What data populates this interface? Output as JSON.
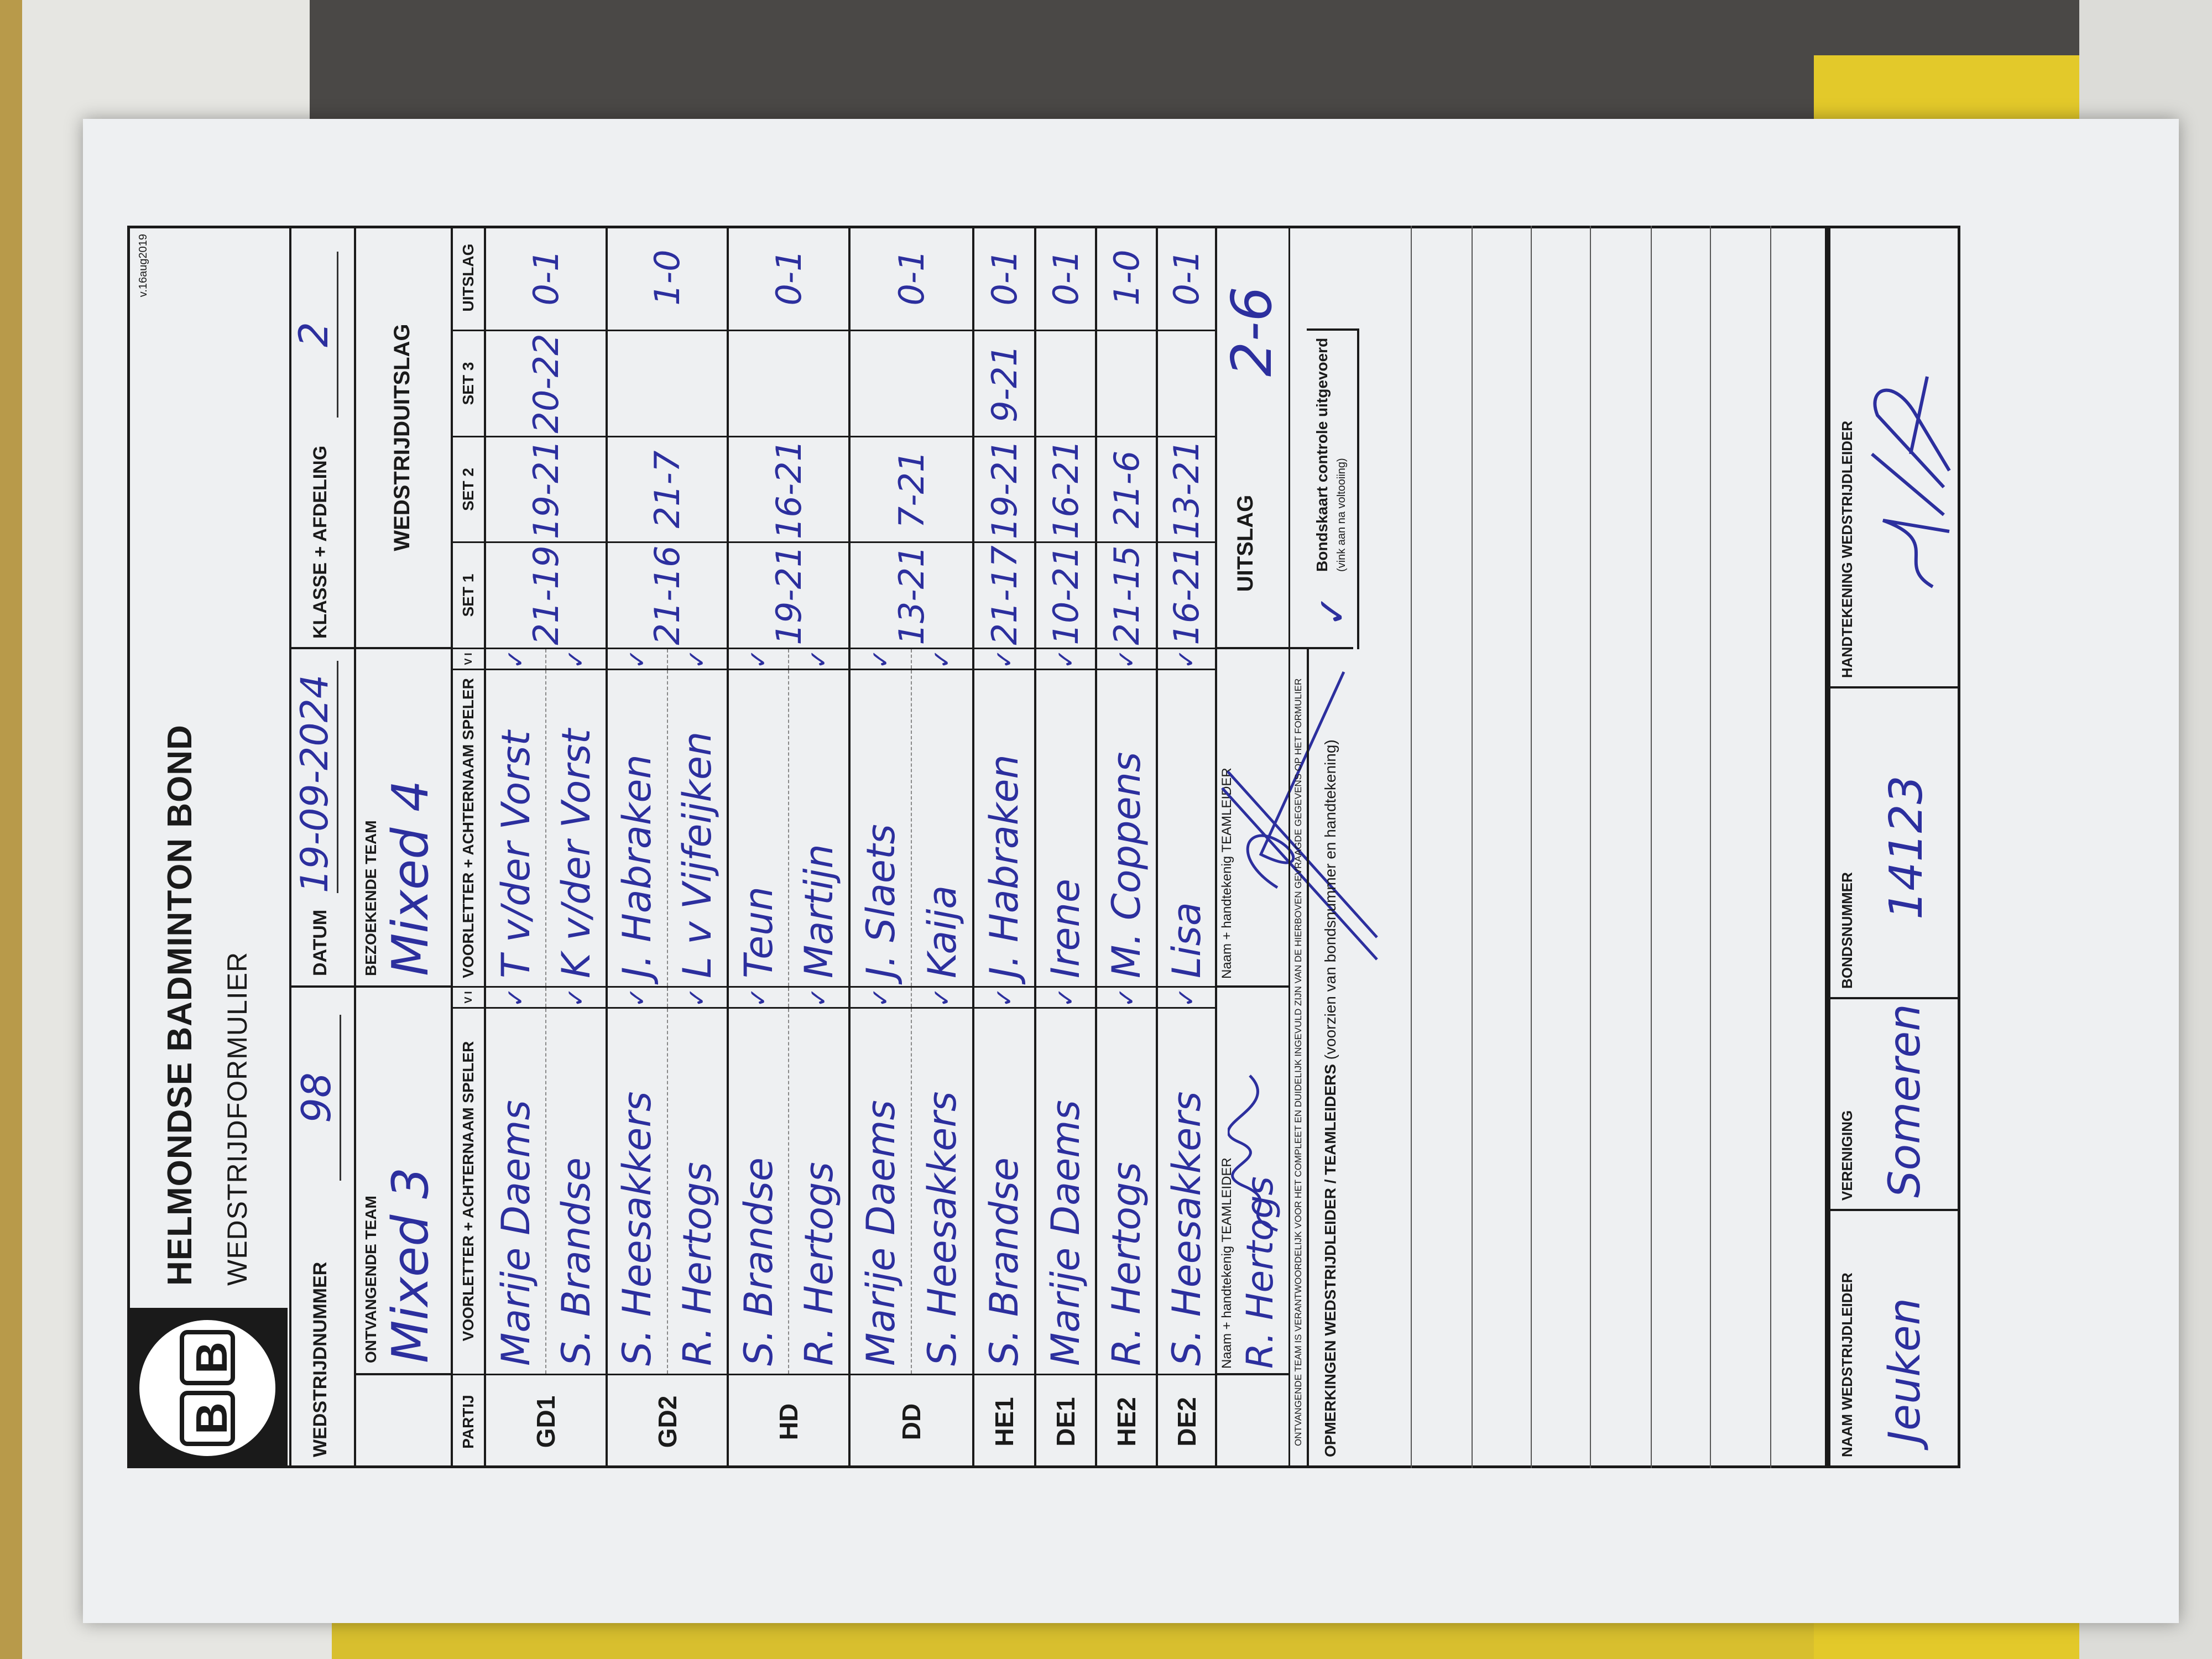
{
  "header": {
    "logo_letters": [
      "B",
      "B"
    ],
    "organization": "HELMONDSE BADMINTON BOND",
    "form_title": "WEDSTRIJDFORMULIER",
    "version": "v.16aug2019"
  },
  "meta": {
    "match_number_label": "WEDSTRIJDNUMMER",
    "match_number": "98",
    "date_label": "DATUM",
    "date": "19-09-2024",
    "class_label": "KLASSE + AFDELING",
    "class": "2"
  },
  "teams": {
    "home_label": "ONTVANGENDE TEAM",
    "home": "Mixed 3",
    "away_label": "BEZOEKENDE TEAM",
    "away": "Mixed 4",
    "result_label": "WEDSTRIJDUITSLAG"
  },
  "columns": {
    "partij": "PARTIJ",
    "home_player": "VOORLETTER + ACHTERNAAM SPELER",
    "v": "V  I",
    "away_player": "VOORLETTER + ACHTERNAAM SPELER",
    "set1": "SET 1",
    "set2": "SET 2",
    "set3": "SET 3",
    "result": "UITSLAG"
  },
  "check_symbol": "✓",
  "matches": [
    {
      "code": "GD1",
      "home": [
        "Marije Daems",
        "S. Brandse"
      ],
      "away": [
        "T v/der Vorst",
        "K v/der Vorst"
      ],
      "sets": [
        "21-19",
        "19-21",
        "20-22"
      ],
      "result": "0-1"
    },
    {
      "code": "GD2",
      "home": [
        "S. Heesakkers",
        "R. Hertogs"
      ],
      "away": [
        "J. Habraken",
        "L v Vijfeijken"
      ],
      "sets": [
        "21-16",
        "21-7",
        ""
      ],
      "result": "1-0"
    },
    {
      "code": "HD",
      "home": [
        "S. Brandse",
        "R. Hertogs"
      ],
      "away": [
        "Teun",
        "Martijn"
      ],
      "sets": [
        "19-21",
        "16-21",
        ""
      ],
      "result": "0-1"
    },
    {
      "code": "DD",
      "home": [
        "Marije Daems",
        "S. Heesakkers"
      ],
      "away": [
        "J. Slaets",
        "Kaija"
      ],
      "sets": [
        "13-21",
        "7-21",
        ""
      ],
      "result": "0-1"
    },
    {
      "code": "HE1",
      "home": [
        "S. Brandse"
      ],
      "away": [
        "J. Habraken"
      ],
      "sets": [
        "21-17",
        "19-21",
        "9-21"
      ],
      "result": "0-1"
    },
    {
      "code": "DE1",
      "home": [
        "Marije Daems"
      ],
      "away": [
        "Irene"
      ],
      "sets": [
        "10-21",
        "16-21",
        ""
      ],
      "result": "0-1"
    },
    {
      "code": "HE2",
      "home": [
        "R. Hertogs"
      ],
      "away": [
        "M. Coppens"
      ],
      "sets": [
        "21-15",
        "21-6",
        ""
      ],
      "result": "1-0"
    },
    {
      "code": "DE2",
      "home": [
        "S. Heesakkers"
      ],
      "away": [
        "Lisa"
      ],
      "sets": [
        "16-21",
        "13-21",
        ""
      ],
      "result": "0-1"
    }
  ],
  "signatures": {
    "home_leader_label": "Naam + handtekenig TEAMLEIDER",
    "home_leader_name": "R. Hertogs",
    "away_leader_label": "Naam + handtekenig TEAMLEIDER",
    "final_label": "UITSLAG",
    "final_score": "2-6",
    "disclaimer": "ONTVANGENDE TEAM IS VERANTWOORDELIJK VOOR HET COMPLEET EN DUIDELIJK INGEVULD ZIJN VAN DE HIERBOVEN GEVRAAGDE GEGEVENS OP HET FORMULIER"
  },
  "remarks": {
    "label_bold": "OPMERKINGEN WEDSTRIJDLEIDER / TEAMLEIDERS",
    "label_note": "(voorzien van bondsnummer en handtekening)",
    "bondskaart_label": "Bondskaart controle uitgevoerd",
    "bondskaart_note": "(vink aan na voltooiing)",
    "bondskaart_mark": "✓"
  },
  "footer": {
    "referee_label": "NAAM WEDSTRIJDLEIDER",
    "referee": "Jeuken",
    "club_label": "VERENIGING",
    "club": "Someren",
    "member_label": "BONDSNUMMER",
    "member_number": "14123",
    "signature_label": "HANDTEKENING WEDSTRIJDLEIDER"
  },
  "colors": {
    "ink": "#2c2f9e",
    "paper": "#eef0f2",
    "folder": "#d8bf2e"
  }
}
